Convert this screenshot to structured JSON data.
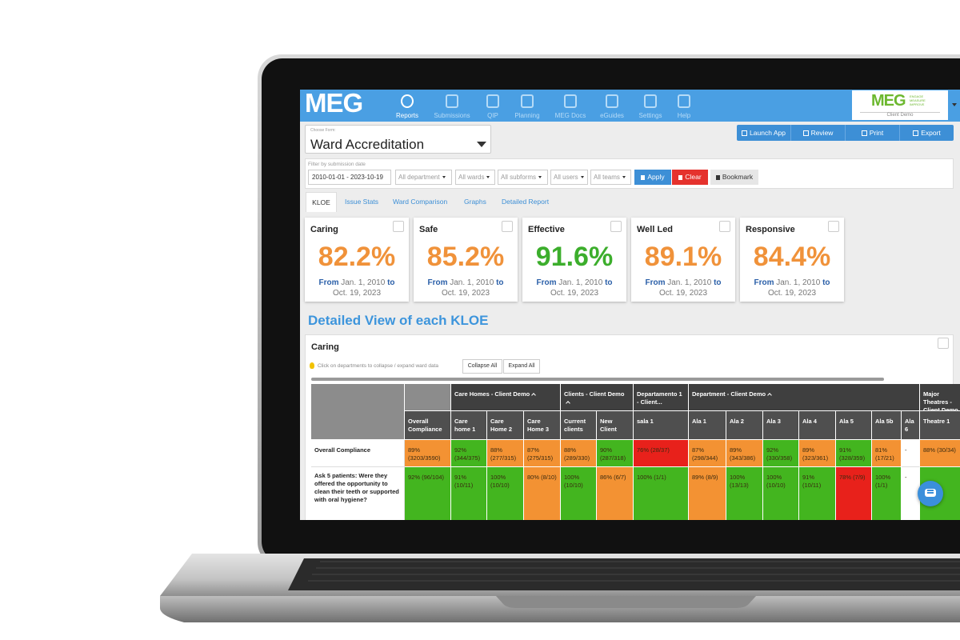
{
  "nav": {
    "logo": "MEG",
    "items": [
      "Reports",
      "Submissions",
      "QIP",
      "Planning",
      "MEG Docs",
      "eGuides",
      "Settings",
      "Help"
    ],
    "active": 0,
    "client_logo": "MEG",
    "client_tagline": [
      "ENGAGE",
      "MEASURE",
      "IMPROVE"
    ],
    "client_name": "Client Demo"
  },
  "form": {
    "label": "Choose Form:",
    "title": "Ward Accreditation"
  },
  "actions": [
    "Launch App",
    "Review",
    "Print",
    "Export"
  ],
  "filters": {
    "label": "Filter by submission date",
    "date": "2010-01-01 - 2023-10-19",
    "dropdowns": [
      "All department",
      "All wards",
      "All subforms",
      "All users",
      "All teams"
    ],
    "apply": "Apply",
    "clear": "Clear",
    "bookmark": "Bookmark"
  },
  "tabs": [
    "KLOE",
    "Issue Stats",
    "Ward Comparison",
    "Graphs",
    "Detailed Report"
  ],
  "kpi_period": {
    "from_label": "From",
    "start": "Jan. 1, 2010",
    "to_label": "to",
    "end": "Oct. 19, 2023"
  },
  "kpis": [
    {
      "title": "Caring",
      "value": "82.2%",
      "color": "#f0923a"
    },
    {
      "title": "Safe",
      "value": "85.2%",
      "color": "#f0923a"
    },
    {
      "title": "Effective",
      "value": "91.6%",
      "color": "#3cae2c"
    },
    {
      "title": "Well Led",
      "value": "89.1%",
      "color": "#f0923a"
    },
    {
      "title": "Responsive",
      "value": "84.4%",
      "color": "#f0923a"
    }
  ],
  "section_title": "Detailed View of each KLOE",
  "panel": {
    "title": "Caring",
    "hint": "Click on departments to collapse / expand ward data",
    "collapse": "Collapse All",
    "expand": "Expand All"
  },
  "table": {
    "groups": [
      {
        "label": null,
        "toggle": false,
        "columns": [
          "Overall Compliance"
        ]
      },
      {
        "label": "Care Homes - Client Demo",
        "toggle": true,
        "columns": [
          "Care home 1",
          "Care Home 2",
          "Care Home 3"
        ]
      },
      {
        "label": "Clients - Client Demo",
        "toggle": true,
        "columns": [
          "Current clients",
          "New Client"
        ]
      },
      {
        "label": "Departamento 1 - Client...",
        "toggle": false,
        "columns": [
          "sala 1"
        ]
      },
      {
        "label": "Department - Client Demo",
        "toggle": true,
        "columns": [
          "Ala 1",
          "Ala 2",
          "Ala 3",
          "Ala 4",
          "Ala 5",
          "Ala 5b",
          "Ala 6"
        ]
      },
      {
        "label": "Major Theatres - Client Demo",
        "toggle": false,
        "columns": [
          "Theatre 1"
        ]
      }
    ],
    "rows": [
      {
        "label": "Overall Compliance",
        "cells": [
          {
            "text": "89% (3203/3590)",
            "color": "#f39233"
          },
          {
            "text": "92% (344/375)",
            "color": "#43b51f"
          },
          {
            "text": "88% (277/315)",
            "color": "#f39233"
          },
          {
            "text": "87% (275/315)",
            "color": "#f39233"
          },
          {
            "text": "88% (289/330)",
            "color": "#f39233"
          },
          {
            "text": "90% (287/318)",
            "color": "#43b51f"
          },
          {
            "text": "76% (28/37)",
            "color": "#e8211b"
          },
          {
            "text": "87% (298/344)",
            "color": "#f39233"
          },
          {
            "text": "89% (343/386)",
            "color": "#f39233"
          },
          {
            "text": "92% (330/358)",
            "color": "#43b51f"
          },
          {
            "text": "89% (323/361)",
            "color": "#f39233"
          },
          {
            "text": "91% (328/359)",
            "color": "#43b51f"
          },
          {
            "text": "81% (17/21)",
            "color": "#f39233"
          },
          {
            "text": "-",
            "color": null
          },
          {
            "text": "88% (30/34)",
            "color": "#f39233"
          }
        ]
      },
      {
        "label": "Ask 5 patients: Were they offered the opportunity to clean their teeth or supported with oral hygiene?",
        "cells": [
          {
            "text": "92% (96/104)",
            "color": "#43b51f"
          },
          {
            "text": "91% (10/11)",
            "color": "#43b51f"
          },
          {
            "text": "100% (10/10)",
            "color": "#43b51f"
          },
          {
            "text": "80% (8/10)",
            "color": "#f39233"
          },
          {
            "text": "100% (10/10)",
            "color": "#43b51f"
          },
          {
            "text": "86% (6/7)",
            "color": "#f39233"
          },
          {
            "text": "100% (1/1)",
            "color": "#43b51f"
          },
          {
            "text": "89% (8/9)",
            "color": "#f39233"
          },
          {
            "text": "100% (13/13)",
            "color": "#43b51f"
          },
          {
            "text": "100% (10/10)",
            "color": "#43b51f"
          },
          {
            "text": "91% (10/11)",
            "color": "#43b51f"
          },
          {
            "text": "78% (7/9)",
            "color": "#e8211b"
          },
          {
            "text": "100% (1/1)",
            "color": "#43b51f"
          },
          {
            "text": "-",
            "color": null
          },
          {
            "text": null,
            "color": "#43b51f"
          }
        ]
      }
    ]
  }
}
